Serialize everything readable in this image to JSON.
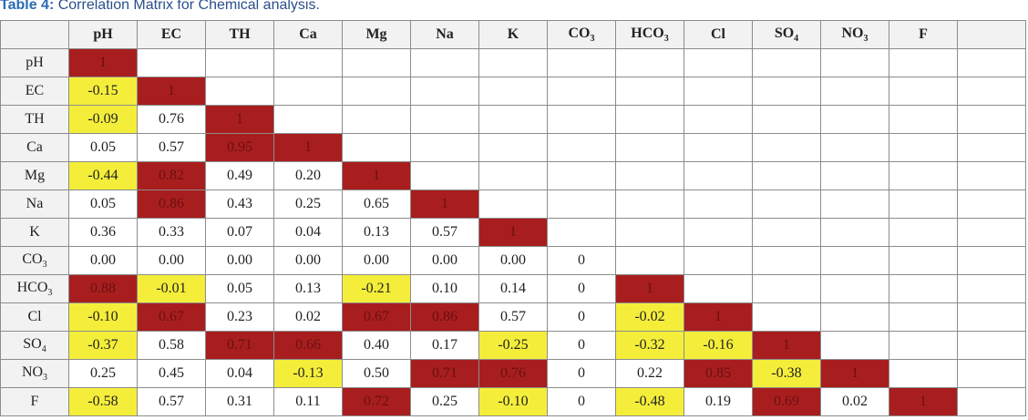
{
  "caption": {
    "lead": "Table 4:",
    "rest": " Correlation Matrix for Chemical analysis."
  },
  "colors": {
    "high": "#a81e1e",
    "moderate_negative": "#f4ee3a",
    "header_bg": "#f2f2f2"
  },
  "columns": [
    {
      "base": "pH",
      "sub": ""
    },
    {
      "base": "EC",
      "sub": ""
    },
    {
      "base": "TH",
      "sub": ""
    },
    {
      "base": "Ca",
      "sub": ""
    },
    {
      "base": "Mg",
      "sub": ""
    },
    {
      "base": "Na",
      "sub": ""
    },
    {
      "base": "K",
      "sub": ""
    },
    {
      "base": "CO",
      "sub": "3"
    },
    {
      "base": "HCO",
      "sub": "3"
    },
    {
      "base": "Cl",
      "sub": ""
    },
    {
      "base": "SO",
      "sub": "4"
    },
    {
      "base": "NO",
      "sub": "3"
    },
    {
      "base": "F",
      "sub": ""
    }
  ],
  "rows": [
    {
      "label": {
        "base": "pH",
        "sub": ""
      },
      "cells": [
        {
          "v": "1",
          "h": "r"
        }
      ]
    },
    {
      "label": {
        "base": "EC",
        "sub": ""
      },
      "cells": [
        {
          "v": "-0.15",
          "h": "y"
        },
        {
          "v": "1",
          "h": "r"
        }
      ]
    },
    {
      "label": {
        "base": "TH",
        "sub": ""
      },
      "cells": [
        {
          "v": "-0.09",
          "h": "y"
        },
        {
          "v": "0.76",
          "h": ""
        },
        {
          "v": "1",
          "h": "r"
        }
      ]
    },
    {
      "label": {
        "base": "Ca",
        "sub": ""
      },
      "cells": [
        {
          "v": "0.05",
          "h": ""
        },
        {
          "v": "0.57",
          "h": ""
        },
        {
          "v": "0.95",
          "h": "r"
        },
        {
          "v": "1",
          "h": "r"
        }
      ]
    },
    {
      "label": {
        "base": "Mg",
        "sub": ""
      },
      "cells": [
        {
          "v": "-0.44",
          "h": "y"
        },
        {
          "v": "0.82",
          "h": "r"
        },
        {
          "v": "0.49",
          "h": ""
        },
        {
          "v": "0.20",
          "h": ""
        },
        {
          "v": "1",
          "h": "r"
        }
      ]
    },
    {
      "label": {
        "base": "Na",
        "sub": ""
      },
      "cells": [
        {
          "v": "0.05",
          "h": ""
        },
        {
          "v": "0.86",
          "h": "r"
        },
        {
          "v": "0.43",
          "h": ""
        },
        {
          "v": "0.25",
          "h": ""
        },
        {
          "v": "0.65",
          "h": ""
        },
        {
          "v": "1",
          "h": "r"
        }
      ]
    },
    {
      "label": {
        "base": "K",
        "sub": ""
      },
      "cells": [
        {
          "v": "0.36",
          "h": ""
        },
        {
          "v": "0.33",
          "h": ""
        },
        {
          "v": "0.07",
          "h": ""
        },
        {
          "v": "0.04",
          "h": ""
        },
        {
          "v": "0.13",
          "h": ""
        },
        {
          "v": "0.57",
          "h": ""
        },
        {
          "v": "1",
          "h": "r"
        }
      ]
    },
    {
      "label": {
        "base": "CO",
        "sub": "3"
      },
      "cells": [
        {
          "v": "0.00",
          "h": ""
        },
        {
          "v": "0.00",
          "h": ""
        },
        {
          "v": "0.00",
          "h": ""
        },
        {
          "v": "0.00",
          "h": ""
        },
        {
          "v": "0.00",
          "h": ""
        },
        {
          "v": "0.00",
          "h": ""
        },
        {
          "v": "0.00",
          "h": ""
        },
        {
          "v": "0",
          "h": ""
        }
      ]
    },
    {
      "label": {
        "base": "HCO",
        "sub": "3"
      },
      "cells": [
        {
          "v": "0.88",
          "h": "r"
        },
        {
          "v": "-0.01",
          "h": "y"
        },
        {
          "v": "0.05",
          "h": ""
        },
        {
          "v": "0.13",
          "h": ""
        },
        {
          "v": "-0.21",
          "h": "y"
        },
        {
          "v": "0.10",
          "h": ""
        },
        {
          "v": "0.14",
          "h": ""
        },
        {
          "v": "0",
          "h": ""
        },
        {
          "v": "1",
          "h": "r"
        }
      ]
    },
    {
      "label": {
        "base": "Cl",
        "sub": ""
      },
      "cells": [
        {
          "v": "-0.10",
          "h": "y"
        },
        {
          "v": "0.67",
          "h": "r"
        },
        {
          "v": "0.23",
          "h": ""
        },
        {
          "v": "0.02",
          "h": ""
        },
        {
          "v": "0.67",
          "h": "r"
        },
        {
          "v": "0.86",
          "h": "r"
        },
        {
          "v": "0.57",
          "h": ""
        },
        {
          "v": "0",
          "h": ""
        },
        {
          "v": "-0.02",
          "h": "y"
        },
        {
          "v": "1",
          "h": "r"
        }
      ]
    },
    {
      "label": {
        "base": "SO",
        "sub": "4"
      },
      "cells": [
        {
          "v": "-0.37",
          "h": "y"
        },
        {
          "v": "0.58",
          "h": ""
        },
        {
          "v": "0.71",
          "h": "r"
        },
        {
          "v": "0.66",
          "h": "r"
        },
        {
          "v": "0.40",
          "h": ""
        },
        {
          "v": "0.17",
          "h": ""
        },
        {
          "v": "-0.25",
          "h": "y"
        },
        {
          "v": "0",
          "h": ""
        },
        {
          "v": "-0.32",
          "h": "y"
        },
        {
          "v": "-0.16",
          "h": "y"
        },
        {
          "v": "1",
          "h": "r"
        }
      ]
    },
    {
      "label": {
        "base": "NO",
        "sub": "3"
      },
      "cells": [
        {
          "v": "0.25",
          "h": ""
        },
        {
          "v": "0.45",
          "h": ""
        },
        {
          "v": "0.04",
          "h": ""
        },
        {
          "v": "-0.13",
          "h": "y"
        },
        {
          "v": "0.50",
          "h": ""
        },
        {
          "v": "0.71",
          "h": "r"
        },
        {
          "v": "0.76",
          "h": "r"
        },
        {
          "v": "0",
          "h": ""
        },
        {
          "v": "0.22",
          "h": ""
        },
        {
          "v": "0.85",
          "h": "r"
        },
        {
          "v": "-0.38",
          "h": "y"
        },
        {
          "v": "1",
          "h": "r"
        }
      ]
    },
    {
      "label": {
        "base": "F",
        "sub": ""
      },
      "cells": [
        {
          "v": "-0.58",
          "h": "y"
        },
        {
          "v": "0.57",
          "h": ""
        },
        {
          "v": "0.31",
          "h": ""
        },
        {
          "v": "0.11",
          "h": ""
        },
        {
          "v": "0.72",
          "h": "r"
        },
        {
          "v": "0.25",
          "h": ""
        },
        {
          "v": "-0.10",
          "h": "y"
        },
        {
          "v": "0",
          "h": ""
        },
        {
          "v": "-0.48",
          "h": "y"
        },
        {
          "v": "0.19",
          "h": ""
        },
        {
          "v": "0.69",
          "h": "r"
        },
        {
          "v": "0.02",
          "h": ""
        },
        {
          "v": "1",
          "h": "r"
        }
      ]
    }
  ]
}
